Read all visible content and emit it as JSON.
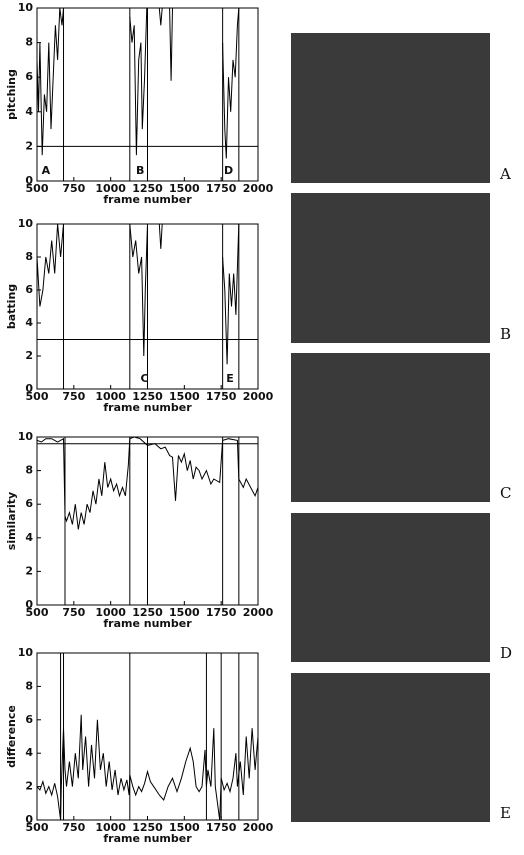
{
  "chart_data": [
    {
      "type": "line",
      "ylabel": "pitching",
      "xlabel": "frame number",
      "color": "#000000",
      "xlim": [
        500,
        2000
      ],
      "ylim": [
        0,
        10
      ],
      "xticks": [
        500,
        750,
        1000,
        1250,
        1500,
        1750,
        2000
      ],
      "yticks": [
        0,
        2,
        4,
        6,
        8,
        10
      ],
      "x": [
        500,
        510,
        520,
        535,
        550,
        565,
        580,
        595,
        610,
        625,
        640,
        655,
        670,
        680,
        690,
        1130,
        1145,
        1160,
        1175,
        1190,
        1205,
        1215,
        1230,
        1245,
        1300,
        1330,
        1340,
        1350,
        1380,
        1400,
        1410,
        1420,
        1500,
        1760,
        1775,
        1785,
        1800,
        1815,
        1830,
        1845,
        1860,
        1870
      ],
      "values": [
        7,
        4,
        8,
        1.5,
        5,
        4,
        8,
        3,
        6,
        9,
        7,
        10,
        9,
        10,
        null,
        9.5,
        8,
        9,
        1.5,
        7,
        8,
        3,
        6,
        10,
        null,
        10,
        9,
        10,
        null,
        10,
        5.8,
        10,
        null,
        8,
        3,
        1.3,
        6,
        4,
        7,
        6,
        9,
        10
      ],
      "vlines": [
        680,
        1130,
        1250,
        1760,
        1870
      ],
      "threshold": 2,
      "annotations": [
        {
          "text": "A",
          "x": 560
        },
        {
          "text": "B",
          "x": 1200
        },
        {
          "text": "D",
          "x": 1800
        }
      ]
    },
    {
      "type": "line",
      "ylabel": "batting",
      "xlabel": "frame number",
      "color": "#000000",
      "xlim": [
        500,
        2000
      ],
      "ylim": [
        0,
        10
      ],
      "xticks": [
        500,
        750,
        1000,
        1250,
        1500,
        1750,
        2000
      ],
      "yticks": [
        0,
        2,
        4,
        6,
        8,
        10
      ],
      "x": [
        500,
        520,
        540,
        560,
        580,
        600,
        620,
        640,
        660,
        680,
        690,
        1130,
        1150,
        1170,
        1190,
        1210,
        1225,
        1235,
        1250,
        1300,
        1330,
        1340,
        1350,
        1380,
        1760,
        1775,
        1790,
        1805,
        1820,
        1835,
        1850,
        1870
      ],
      "values": [
        8,
        5,
        6,
        8,
        7,
        9,
        7,
        10,
        8,
        10,
        null,
        10,
        8,
        9,
        7,
        8,
        2,
        6,
        10,
        null,
        10,
        8.5,
        10,
        null,
        8,
        6,
        1.5,
        7,
        5,
        7,
        4.5,
        10
      ],
      "vlines": [
        680,
        1130,
        1250,
        1760,
        1870
      ],
      "threshold": 3,
      "annotations": [
        {
          "text": "C",
          "x": 1230
        },
        {
          "text": "E",
          "x": 1810
        }
      ]
    },
    {
      "type": "line",
      "ylabel": "similarity",
      "xlabel": "frame number",
      "color": "#000000",
      "xlim": [
        500,
        2000
      ],
      "ylim": [
        0,
        10
      ],
      "xticks": [
        500,
        750,
        1000,
        1250,
        1500,
        1750,
        2000
      ],
      "yticks": [
        0,
        2,
        4,
        6,
        8,
        10
      ],
      "x": [
        500,
        530,
        560,
        600,
        640,
        680,
        690,
        700,
        720,
        740,
        760,
        780,
        800,
        820,
        840,
        860,
        880,
        900,
        920,
        940,
        960,
        980,
        1000,
        1020,
        1040,
        1060,
        1080,
        1100,
        1120,
        1130,
        1160,
        1200,
        1250,
        1300,
        1340,
        1370,
        1400,
        1420,
        1440,
        1460,
        1480,
        1500,
        1520,
        1540,
        1560,
        1580,
        1600,
        1620,
        1650,
        1680,
        1700,
        1740,
        1760,
        1800,
        1860,
        1870,
        1900,
        1920,
        1950,
        1980,
        2000
      ],
      "values": [
        9.8,
        9.7,
        9.9,
        9.9,
        9.7,
        9.9,
        5.3,
        5,
        5.5,
        4.8,
        6,
        4.5,
        5.5,
        4.8,
        6,
        5.5,
        6.8,
        6,
        7.5,
        6.5,
        8.5,
        7,
        7.5,
        6.8,
        7.2,
        6.5,
        7,
        6.5,
        8.3,
        9.9,
        10,
        9.9,
        9.5,
        9.6,
        9.3,
        9.4,
        8.9,
        8.8,
        6.2,
        8.9,
        8.5,
        9,
        8,
        8.6,
        7.5,
        8.2,
        8,
        7.5,
        8,
        7.2,
        7.5,
        7.3,
        9.8,
        9.9,
        9.8,
        7.5,
        7,
        7.5,
        7,
        6.5,
        7
      ],
      "vlines": [
        690,
        1130,
        1250,
        1760,
        1870
      ],
      "threshold": 9.6,
      "annotations": []
    },
    {
      "type": "line",
      "ylabel": "difference",
      "xlabel": "frame number",
      "color": "#000000",
      "xlim": [
        500,
        2000
      ],
      "ylim": [
        0,
        10
      ],
      "xticks": [
        500,
        750,
        1000,
        1250,
        1500,
        1750,
        2000
      ],
      "yticks": [
        0,
        2,
        4,
        6,
        8,
        10
      ],
      "x": [
        500,
        520,
        540,
        560,
        580,
        600,
        620,
        640,
        660,
        665,
        680,
        690,
        700,
        720,
        740,
        760,
        780,
        800,
        810,
        830,
        850,
        870,
        890,
        910,
        930,
        950,
        970,
        990,
        1010,
        1030,
        1050,
        1070,
        1090,
        1110,
        1125,
        1130,
        1150,
        1170,
        1190,
        1210,
        1230,
        1250,
        1270,
        1300,
        1330,
        1360,
        1390,
        1420,
        1450,
        1480,
        1510,
        1540,
        1560,
        1580,
        1600,
        1620,
        1640,
        1650,
        1660,
        1680,
        1700,
        1710,
        1725,
        1740,
        1750,
        1770,
        1790,
        1810,
        1830,
        1850,
        1860,
        1880,
        1900,
        1920,
        1940,
        1960,
        1980,
        2000
      ],
      "values": [
        2,
        1.8,
        2.3,
        1.6,
        2,
        1.5,
        2.2,
        1.4,
        0,
        2,
        5.5,
        3,
        2,
        3.5,
        2,
        4,
        2.5,
        6.3,
        3,
        5,
        2,
        4.5,
        2.5,
        6,
        3,
        4,
        2,
        3.5,
        1.8,
        3,
        1.5,
        2.5,
        1.8,
        2.4,
        1.5,
        2.7,
        2,
        1.5,
        2,
        1.7,
        2.2,
        2.9,
        2.3,
        1.9,
        1.5,
        1.2,
        2,
        2.5,
        1.7,
        2.5,
        3.5,
        4.3,
        3.5,
        2,
        1.7,
        2,
        4.2,
        2,
        3,
        2,
        5.5,
        2,
        1,
        0,
        2.5,
        1.8,
        2.2,
        1.7,
        2.5,
        4,
        2,
        3.5,
        1.5,
        5,
        2.5,
        5.5,
        3,
        5
      ],
      "vlines": [
        660,
        680,
        1130,
        1650,
        1750,
        1870
      ],
      "annotations": []
    }
  ],
  "panels": [
    "A",
    "B",
    "C",
    "D",
    "E"
  ]
}
